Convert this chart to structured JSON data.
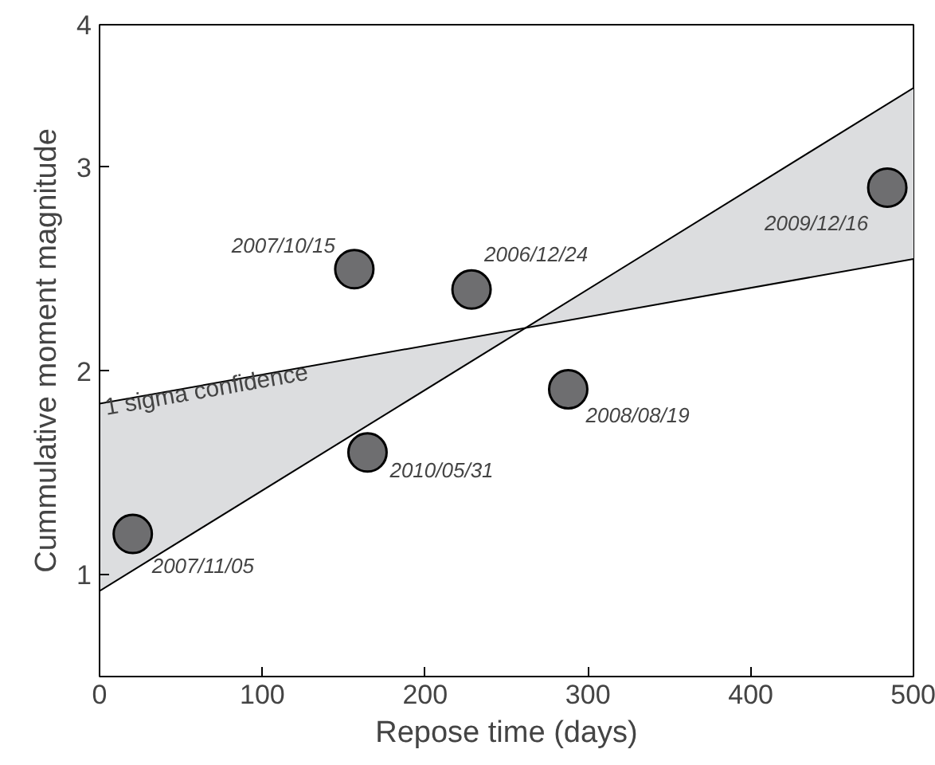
{
  "chart_data": {
    "type": "scatter",
    "xlabel": "Repose time (days)",
    "ylabel": "Cummulative moment magnitude",
    "x": [
      20.4,
      164.6,
      156.5,
      228.5,
      287.9,
      483.9
    ],
    "series": [
      {
        "marker": "circle",
        "color": "#6e6e70",
        "values": [
          1.2,
          1.6,
          2.5,
          2.4,
          1.91,
          2.9
        ]
      },
      {
        "type": "line",
        "color": "#000000",
        "x": [
          0,
          261.4,
          500
        ],
        "values": [
          0.92,
          2.21,
          3.39
        ],
        "lower": [
          0.92,
          2.21,
          2.55
        ],
        "upper": [
          1.84,
          2.21,
          3.39
        ]
      },
      {
        "type": "line",
        "color": "#000000",
        "x": [
          0,
          500
        ],
        "values": [
          1.84,
          2.55
        ]
      }
    ],
    "annotations": [
      {
        "text": "2007/11/05",
        "x": 20.4,
        "y": 1.2
      },
      {
        "text": "2010/05/31",
        "x": 164.6,
        "y": 1.6
      },
      {
        "text": "2007/10/15",
        "x": 156.5,
        "y": 2.5
      },
      {
        "text": "2006/12/24",
        "x": 228.5,
        "y": 2.4
      },
      {
        "text": "2008/08/19",
        "x": 287.9,
        "y": 1.91
      },
      {
        "text": "2009/12/16",
        "x": 483.9,
        "y": 2.9
      },
      "1 sigma confidence"
    ],
    "xlim": [
      0,
      500
    ],
    "xticks": [
      0,
      100,
      200,
      300,
      400,
      500
    ],
    "ylim": [
      0.5,
      3.7
    ],
    "yticks": [
      1,
      2,
      3,
      {
        "value": 3.7,
        "label": "4"
      }
    ],
    "grid": false,
    "line_style": "solid"
  }
}
